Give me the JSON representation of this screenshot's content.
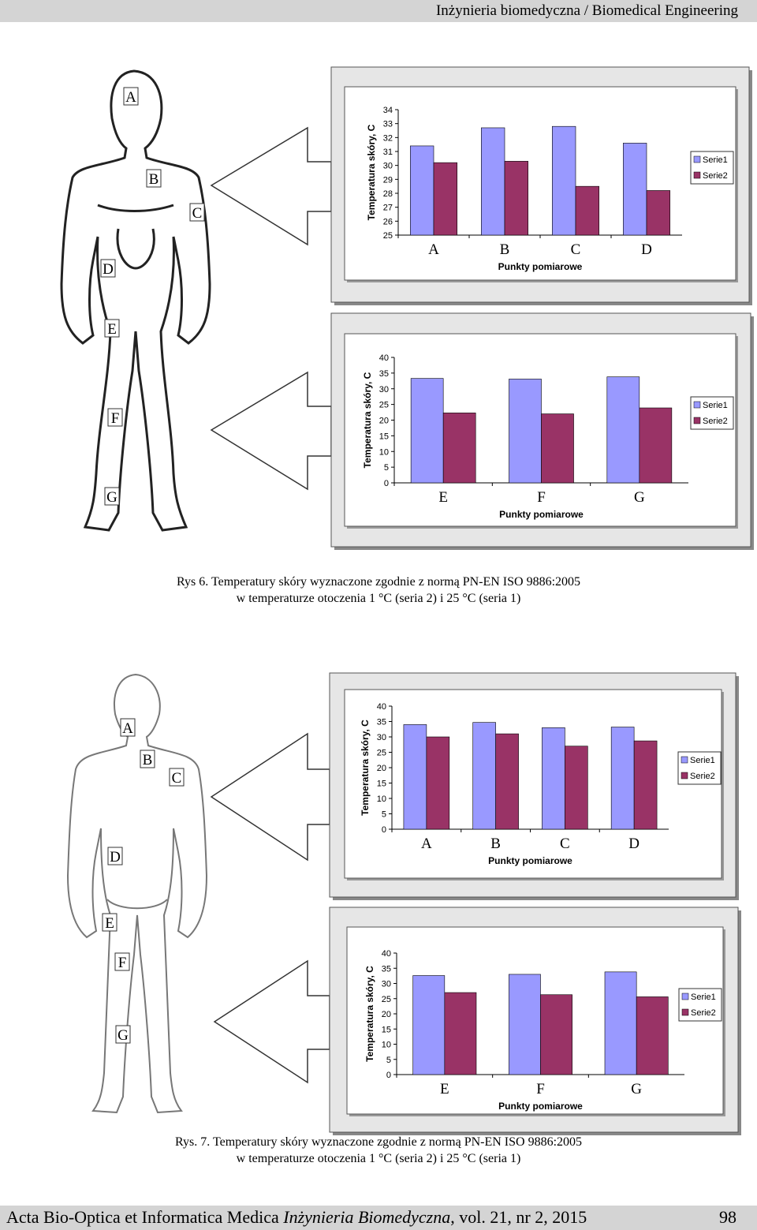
{
  "header": {
    "title": "Inżynieria biomedyczna / Biomedical Engineering"
  },
  "figures": [
    {
      "body_labels": [
        "A",
        "B",
        "C",
        "D",
        "E",
        "F",
        "G"
      ],
      "caption": [
        "Rys 6. Temperatury skóry wyznaczone zgodnie z normą PN-EN ISO 9886:2005",
        "w temperaturze otoczenia 1 °C (seria 2) i 25 °C (seria 1)"
      ]
    },
    {
      "body_labels": [
        "A",
        "B",
        "C",
        "D",
        "E",
        "F",
        "G"
      ],
      "caption": [
        "Rys. 7. Temperatury skóry wyznaczone zgodnie z normą PN-EN ISO 9886:2005",
        "w temperaturze otoczenia 1 °C (seria 2) i 25 °C (seria 1)"
      ]
    }
  ],
  "chart_data": [
    {
      "type": "bar",
      "y_label": "Temperatura skóry, C",
      "x_label": "Punkty pomiarowe",
      "categories": [
        "A",
        "B",
        "C",
        "D"
      ],
      "series": [
        {
          "name": "Serie1",
          "color": "#9999ff",
          "values": [
            31.4,
            32.7,
            32.8,
            31.6
          ]
        },
        {
          "name": "Serie2",
          "color": "#993366",
          "values": [
            30.2,
            30.3,
            28.5,
            28.2
          ]
        }
      ],
      "ylim": [
        25,
        34
      ],
      "yticks": [
        25,
        26,
        27,
        28,
        29,
        30,
        31,
        32,
        33,
        34
      ],
      "legend": "right"
    },
    {
      "type": "bar",
      "y_label": "Temperatura skóry, C",
      "x_label": "Punkty pomiarowe",
      "categories": [
        "E",
        "F",
        "G"
      ],
      "series": [
        {
          "name": "Serie1",
          "color": "#9999ff",
          "values": [
            33.3,
            33.1,
            33.8
          ]
        },
        {
          "name": "Serie2",
          "color": "#993366",
          "values": [
            22.3,
            22,
            23.9
          ]
        }
      ],
      "ylim": [
        0,
        40
      ],
      "yticks": [
        0,
        5,
        10,
        15,
        20,
        25,
        30,
        35,
        40
      ],
      "legend": "right"
    },
    {
      "type": "bar",
      "y_label": "Temperatura skóry, C",
      "x_label": "Punkty pomiarowe",
      "categories": [
        "A",
        "B",
        "C",
        "D"
      ],
      "series": [
        {
          "name": "Serie1",
          "color": "#9999ff",
          "values": [
            34,
            34.7,
            33,
            33.2
          ]
        },
        {
          "name": "Serie2",
          "color": "#993366",
          "values": [
            30,
            31,
            27,
            28.7
          ]
        }
      ],
      "ylim": [
        0,
        40
      ],
      "yticks": [
        0,
        5,
        10,
        15,
        20,
        25,
        30,
        35,
        40
      ],
      "legend": "right"
    },
    {
      "type": "bar",
      "y_label": "Temperatura skóry, C",
      "x_label": "Punkty pomiarowe",
      "categories": [
        "E",
        "F",
        "G"
      ],
      "series": [
        {
          "name": "Serie1",
          "color": "#9999ff",
          "values": [
            32.6,
            33,
            33.8
          ]
        },
        {
          "name": "Serie2",
          "color": "#993366",
          "values": [
            27,
            26.3,
            25.6
          ]
        }
      ],
      "ylim": [
        0,
        40
      ],
      "yticks": [
        0,
        5,
        10,
        15,
        20,
        25,
        30,
        35,
        40
      ],
      "legend": "right"
    }
  ],
  "footer": {
    "journal": "Acta Bio-Optica et Informatica Medica ",
    "journal_italic": "Inżynieria Biomedyczna",
    "volume": ", vol. 21, nr 2, 2015",
    "page": "98"
  }
}
